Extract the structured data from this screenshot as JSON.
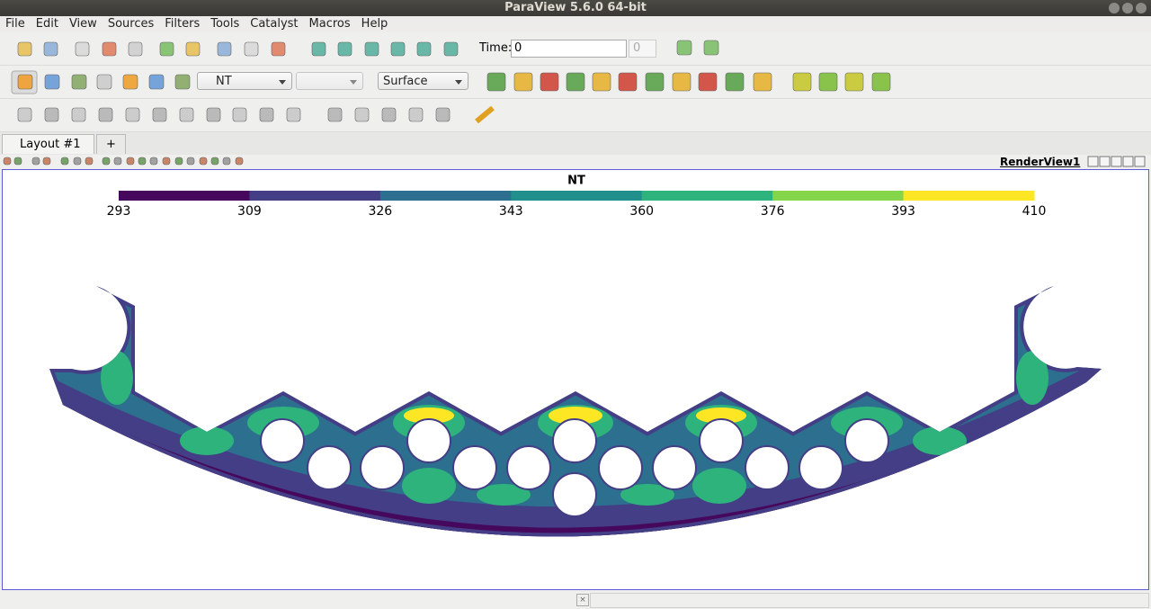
{
  "window_title": "ParaView 5.6.0 64-bit",
  "menu": [
    "File",
    "Edit",
    "View",
    "Sources",
    "Filters",
    "Tools",
    "Catalyst",
    "Macros",
    "Help"
  ],
  "toolbar": {
    "time_label": "Time:",
    "time_value": "0",
    "time_index": "0",
    "array": "NT",
    "representation": "Surface"
  },
  "tabs": {
    "layout": "Layout #1",
    "add": "+"
  },
  "view": {
    "title": "RenderView1"
  },
  "colorbar": {
    "title": "NT",
    "labels": [
      293,
      309,
      326,
      343,
      360,
      376,
      393,
      410
    ],
    "colors": [
      "#46085c",
      "#433e85",
      "#2d6f8e",
      "#21908d",
      "#2eb37c",
      "#85d54a",
      "#fde725"
    ]
  }
}
